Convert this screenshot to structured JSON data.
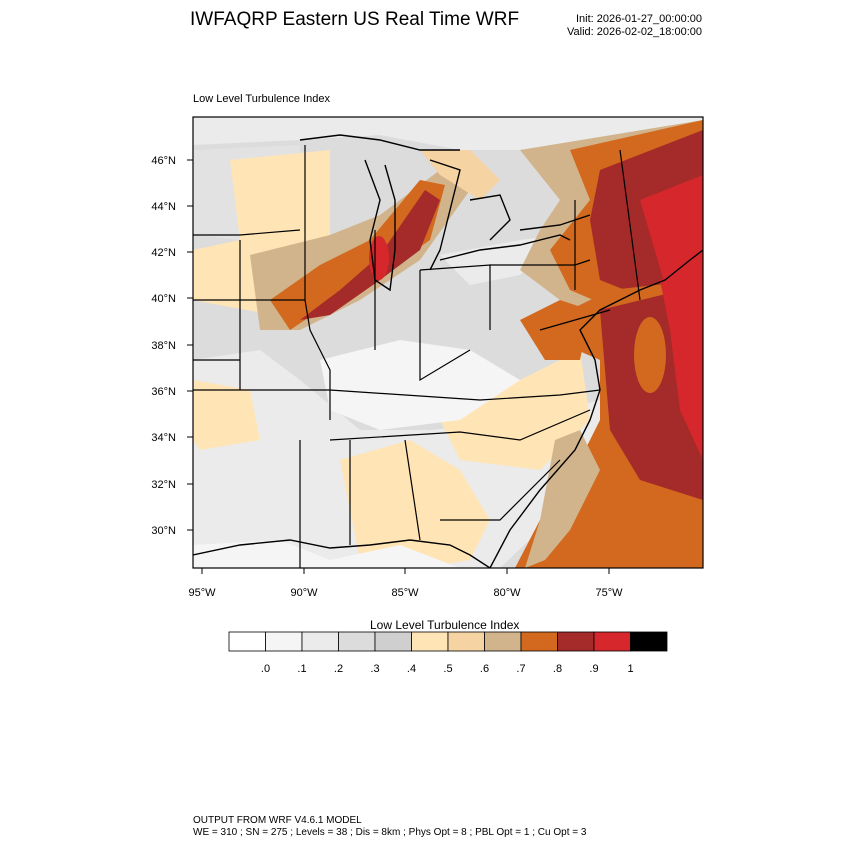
{
  "header": {
    "title": "IWFAQRP Eastern US Real Time WRF",
    "init": "Init: 2026-01-27_00:00:00",
    "valid": "Valid: 2026-02-02_18:00:00"
  },
  "plot": {
    "label": "Low Level Turbulence Index",
    "lat_ticks": [
      "46°N",
      "44°N",
      "42°N",
      "40°N",
      "38°N",
      "36°N",
      "34°N",
      "32°N",
      "30°N"
    ],
    "lon_ticks": [
      "95°W",
      "90°W",
      "85°W",
      "80°W",
      "75°W"
    ]
  },
  "colorbar": {
    "title": "Low Level Turbulence Index",
    "colors": [
      "#ffffff",
      "#f5f5f5",
      "#ebebeb",
      "#dcdcdc",
      "#cfcfcf",
      "#ffe4b5",
      "#f5d3a2",
      "#d2b48c",
      "#d2691e",
      "#a52a2a",
      "#d6282c",
      "#000000"
    ],
    "labels": [
      ".0",
      ".1",
      ".2",
      ".3",
      ".4",
      ".5",
      ".6",
      ".7",
      ".8",
      ".9",
      "1"
    ]
  },
  "footer": {
    "line1": "OUTPUT FROM WRF V4.6.1 MODEL",
    "line2": "WE = 310 ; SN = 275 ; Levels = 38 ; Dis = 8km ; Phys Opt = 8 ; PBL Opt = 1 ; Cu Opt = 3"
  }
}
